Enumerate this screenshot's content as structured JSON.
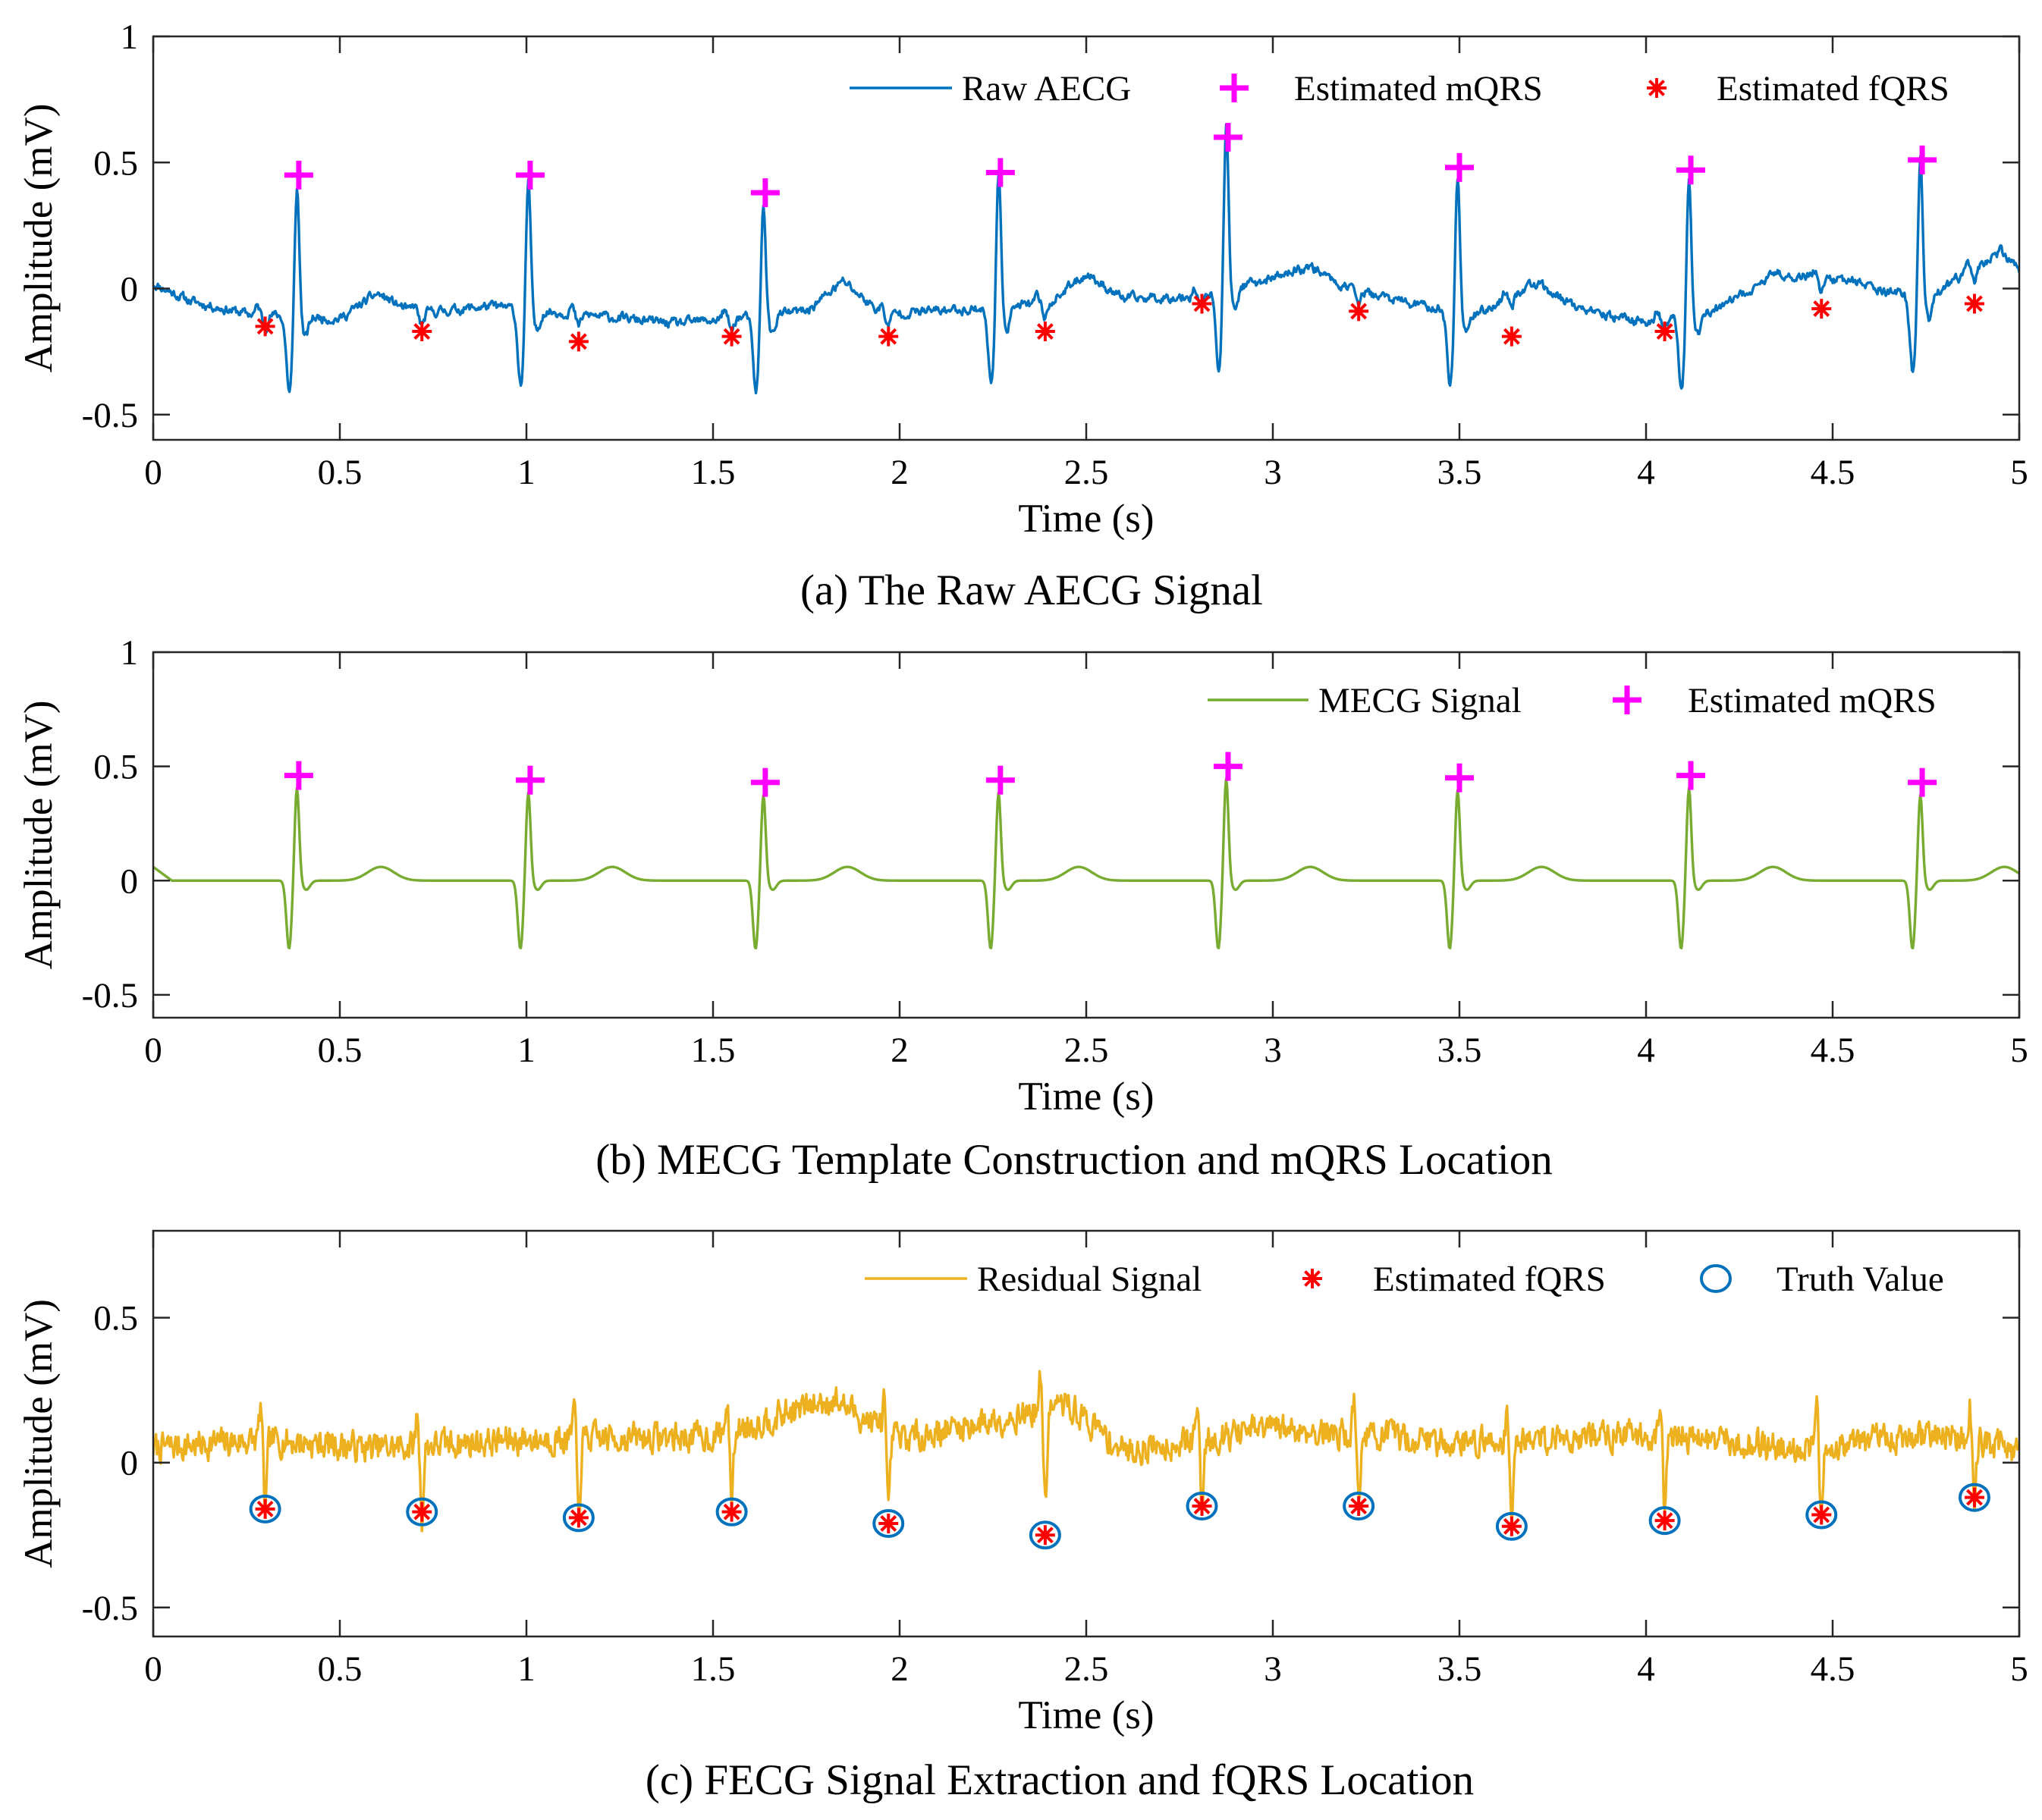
{
  "figure": {
    "caption_a": "(a) The Raw AECG Signal",
    "caption_b": "(b) MECG Template Construction and mQRS Location",
    "caption_c": "(c)  FECG Signal Extraction and fQRS Location"
  },
  "colors": {
    "raw": "#0072BD",
    "mecg": "#77AC30",
    "residual": "#EDB120",
    "mqrs_marker": "#FF00FF",
    "fqrs_marker": "#FF0000",
    "truth_marker": "#0072BD"
  },
  "chart_data": [
    {
      "type": "line",
      "id": "raw",
      "title": "(a) The Raw AECG Signal",
      "xlabel": "Time (s)",
      "ylabel": "Amplitude (mV)",
      "xlim": [
        0,
        5
      ],
      "ylim": [
        -0.6,
        1
      ],
      "xticks": [
        0,
        0.5,
        1,
        1.5,
        2,
        2.5,
        3,
        3.5,
        4,
        4.5,
        5
      ],
      "xtick_labels": [
        "0",
        "0.5",
        "1",
        "1.5",
        "2",
        "2.5",
        "3",
        "3.5",
        "4",
        "4.5",
        "5"
      ],
      "yticks": [
        -0.5,
        0,
        0.5,
        1
      ],
      "ytick_labels": [
        "-0.5",
        "0",
        "0.5",
        "1"
      ],
      "legend": [
        "Raw AECG",
        "Estimated mQRS",
        "Estimated fQRS"
      ],
      "legend_position": "top-right",
      "series": [
        {
          "name": "Raw AECG",
          "kind": "line",
          "baseline": [
            [
              0,
              0.02
            ],
            [
              0.1,
              -0.05
            ],
            [
              0.25,
              -0.1
            ],
            [
              0.5,
              -0.12
            ],
            [
              0.6,
              -0.02
            ],
            [
              0.7,
              -0.1
            ],
            [
              0.9,
              -0.07
            ],
            [
              1.2,
              -0.11
            ],
            [
              1.4,
              -0.14
            ],
            [
              1.6,
              -0.11
            ],
            [
              1.75,
              -0.09
            ],
            [
              1.85,
              0.03
            ],
            [
              1.95,
              -0.1
            ],
            [
              2.2,
              -0.08
            ],
            [
              2.4,
              -0.06
            ],
            [
              2.5,
              0.06
            ],
            [
              2.6,
              -0.04
            ],
            [
              2.8,
              -0.03
            ],
            [
              2.95,
              0.02
            ],
            [
              3.1,
              0.09
            ],
            [
              3.2,
              0.0
            ],
            [
              3.4,
              -0.07
            ],
            [
              3.55,
              -0.1
            ],
            [
              3.7,
              0.02
            ],
            [
              3.85,
              -0.1
            ],
            [
              4.0,
              -0.13
            ],
            [
              4.2,
              -0.08
            ],
            [
              4.35,
              0.06
            ],
            [
              4.55,
              0.03
            ],
            [
              4.75,
              -0.05
            ],
            [
              4.95,
              0.15
            ],
            [
              5.0,
              0.07
            ]
          ]
        },
        {
          "name": "Estimated mQRS",
          "kind": "marker-plus",
          "x": [
            0.39,
            1.01,
            1.64,
            2.27,
            2.88,
            3.5,
            4.12,
            4.74
          ],
          "y": [
            0.45,
            0.45,
            0.38,
            0.46,
            0.6,
            0.48,
            0.47,
            0.51
          ]
        },
        {
          "name": "Estimated fQRS",
          "kind": "marker-star",
          "x": [
            0.3,
            0.72,
            1.14,
            1.55,
            1.97,
            2.39,
            2.81,
            3.23,
            3.64,
            4.05,
            4.47,
            4.88
          ],
          "y": [
            -0.15,
            -0.17,
            -0.21,
            -0.19,
            -0.19,
            -0.17,
            -0.06,
            -0.09,
            -0.19,
            -0.17,
            -0.08,
            -0.06
          ]
        }
      ]
    },
    {
      "type": "line",
      "id": "mecg",
      "title": "(b) MECG Template Construction and mQRS Location",
      "xlabel": "Time (s)",
      "ylabel": "Amplitude (mV)",
      "xlim": [
        0,
        5
      ],
      "ylim": [
        -0.6,
        1
      ],
      "xticks": [
        0,
        0.5,
        1,
        1.5,
        2,
        2.5,
        3,
        3.5,
        4,
        4.5,
        5
      ],
      "xtick_labels": [
        "0",
        "0.5",
        "1",
        "1.5",
        "2",
        "2.5",
        "3",
        "3.5",
        "4",
        "4.5",
        "5"
      ],
      "yticks": [
        -0.5,
        0,
        0.5,
        1
      ],
      "ytick_labels": [
        "-0.5",
        "0",
        "0.5",
        "1"
      ],
      "legend": [
        "MECG Signal",
        "Estimated mQRS"
      ],
      "legend_position": "top-right",
      "series": [
        {
          "name": "MECG Signal",
          "kind": "line",
          "baseline": [
            [
              0,
              0.06
            ],
            [
              0.05,
              0.0
            ],
            [
              5.0,
              0.0
            ]
          ],
          "t_waves_x": [
            0.61,
            1.23,
            1.86,
            2.48,
            3.1,
            3.72,
            4.34,
            4.96
          ],
          "t_wave_amplitude": 0.06
        },
        {
          "name": "Estimated mQRS",
          "kind": "marker-plus",
          "x": [
            0.39,
            1.01,
            1.64,
            2.27,
            2.88,
            3.5,
            4.12,
            4.74
          ],
          "y": [
            0.46,
            0.44,
            0.43,
            0.44,
            0.5,
            0.45,
            0.46,
            0.43
          ]
        }
      ]
    },
    {
      "type": "line",
      "id": "residual",
      "title": "(c)  FECG Signal Extraction and fQRS Location",
      "xlabel": "Time (s)",
      "ylabel": "Amplitude (mV)",
      "xlim": [
        0,
        5
      ],
      "ylim": [
        -0.6,
        0.8
      ],
      "xticks": [
        0,
        0.5,
        1,
        1.5,
        2,
        2.5,
        3,
        3.5,
        4,
        4.5,
        5
      ],
      "xtick_labels": [
        "0",
        "0.5",
        "1",
        "1.5",
        "2",
        "2.5",
        "3",
        "3.5",
        "4",
        "4.5",
        "5"
      ],
      "yticks": [
        -0.5,
        0,
        0.5
      ],
      "ytick_labels": [
        "-0.5",
        "0",
        "0.5"
      ],
      "legend": [
        "Residual Signal",
        "Estimated fQRS",
        "Truth Value"
      ],
      "legend_position": "top-right",
      "series": [
        {
          "name": "Residual Signal",
          "kind": "line",
          "baseline": [
            [
              0,
              0.05
            ],
            [
              0.3,
              0.08
            ],
            [
              0.6,
              0.05
            ],
            [
              1.0,
              0.08
            ],
            [
              1.5,
              0.09
            ],
            [
              1.82,
              0.22
            ],
            [
              2.0,
              0.08
            ],
            [
              2.45,
              0.2
            ],
            [
              2.6,
              0.04
            ],
            [
              3.0,
              0.12
            ],
            [
              3.5,
              0.07
            ],
            [
              4.0,
              0.1
            ],
            [
              4.4,
              0.05
            ],
            [
              4.8,
              0.1
            ],
            [
              5.0,
              0.04
            ]
          ]
        },
        {
          "name": "Estimated fQRS",
          "kind": "marker-star",
          "x": [
            0.3,
            0.72,
            1.14,
            1.55,
            1.97,
            2.39,
            2.81,
            3.23,
            3.64,
            4.05,
            4.47,
            4.88
          ],
          "y": [
            -0.16,
            -0.17,
            -0.19,
            -0.17,
            -0.21,
            -0.25,
            -0.15,
            -0.15,
            -0.22,
            -0.2,
            -0.18,
            -0.12
          ]
        },
        {
          "name": "Truth Value",
          "kind": "marker-circle",
          "x": [
            0.3,
            0.72,
            1.14,
            1.55,
            1.97,
            2.39,
            2.81,
            3.23,
            3.64,
            4.05,
            4.47,
            4.88
          ],
          "y": [
            -0.16,
            -0.17,
            -0.19,
            -0.17,
            -0.21,
            -0.25,
            -0.15,
            -0.15,
            -0.22,
            -0.2,
            -0.18,
            -0.12
          ]
        }
      ]
    }
  ]
}
